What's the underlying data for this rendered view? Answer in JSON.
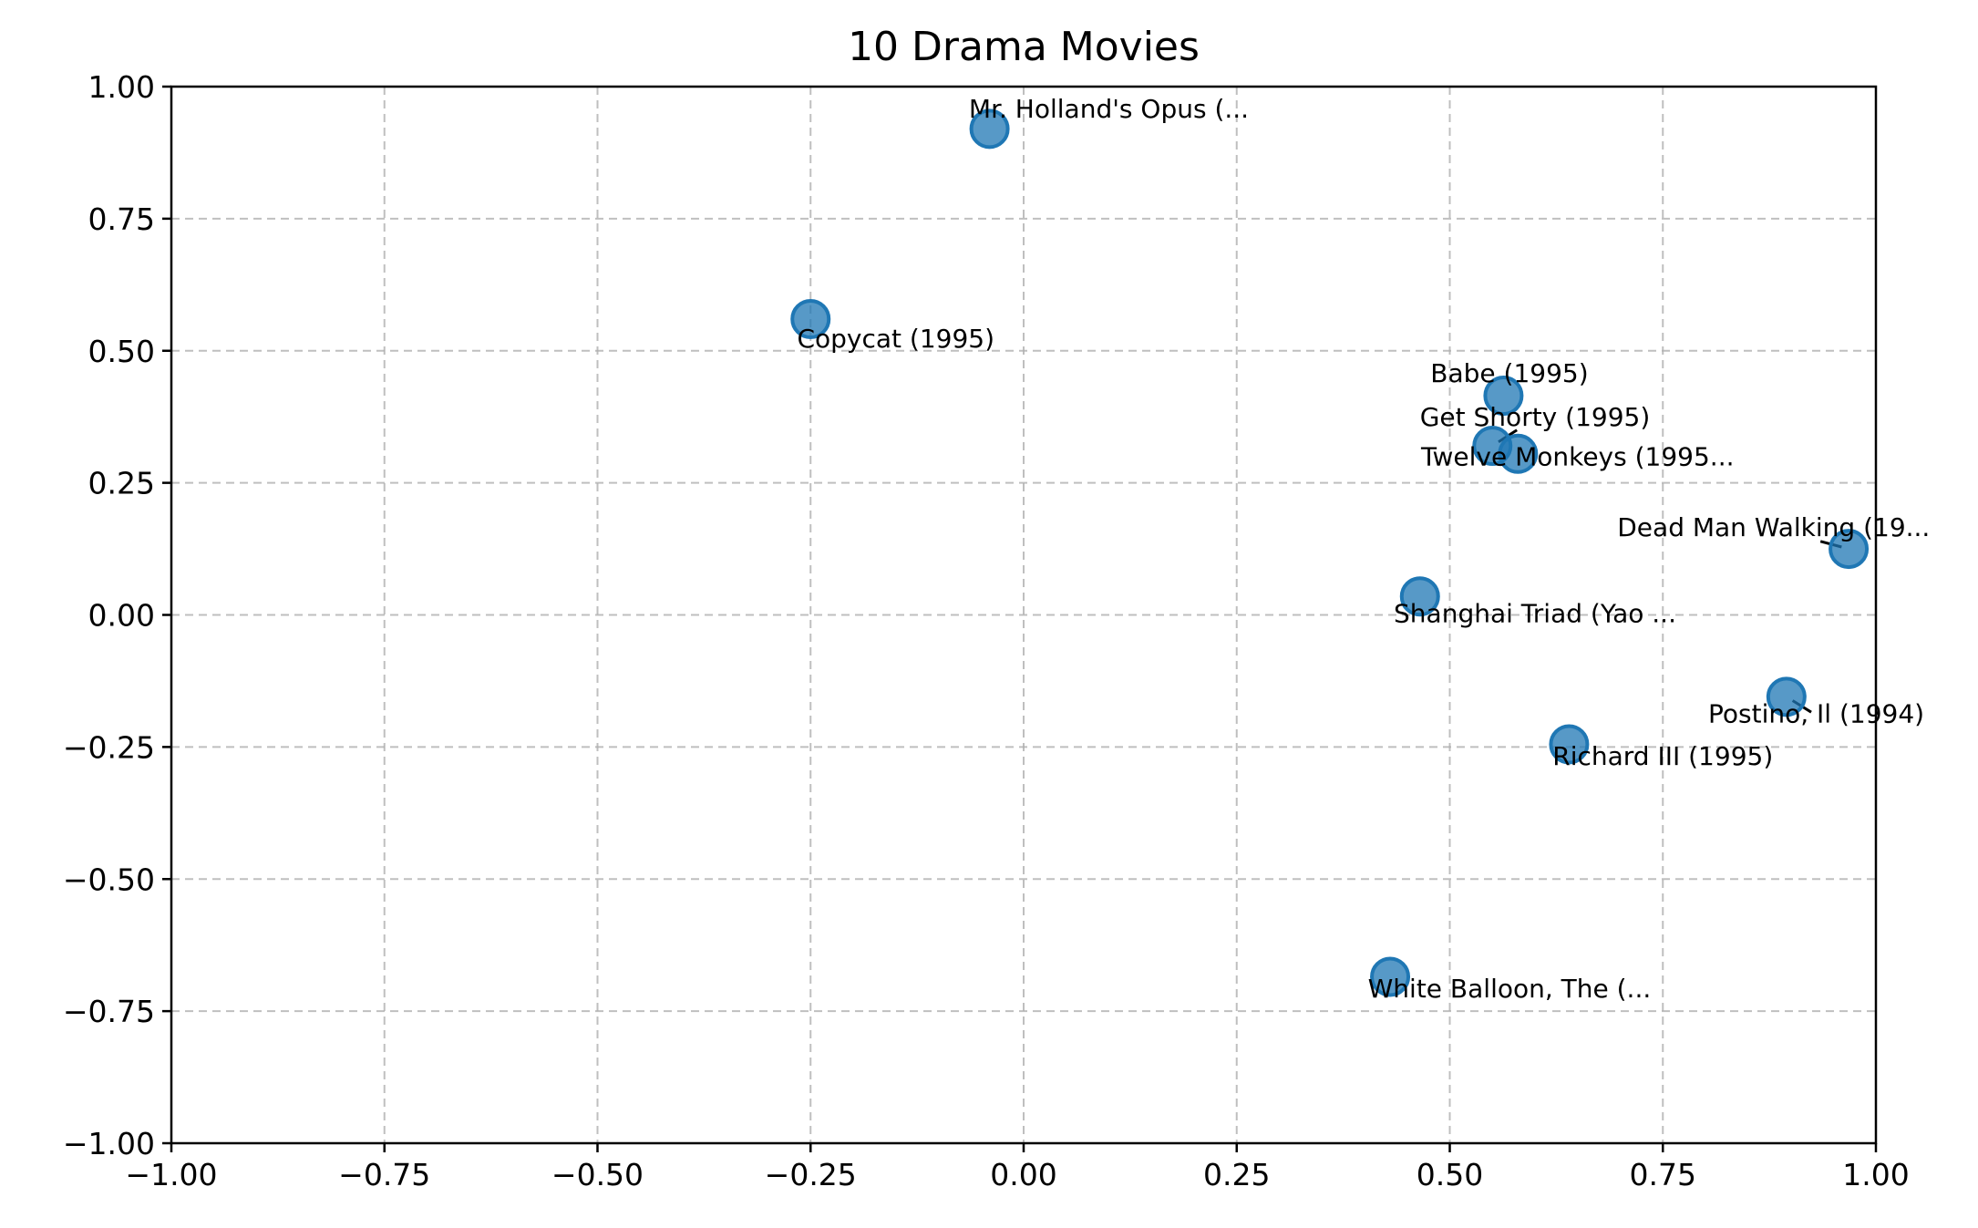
{
  "chart_data": {
    "type": "scatter",
    "title": "10 Drama Movies",
    "xlabel": "",
    "ylabel": "",
    "xlim": [
      -1.0,
      1.0
    ],
    "ylim": [
      -1.0,
      1.0
    ],
    "grid": true,
    "point_color": "#1f77b4",
    "x_ticks": [
      {
        "value": -1.0,
        "label": "−1.00"
      },
      {
        "value": -0.75,
        "label": "−0.75"
      },
      {
        "value": -0.5,
        "label": "−0.50"
      },
      {
        "value": -0.25,
        "label": "−0.25"
      },
      {
        "value": 0.0,
        "label": "0.00"
      },
      {
        "value": 0.25,
        "label": "0.25"
      },
      {
        "value": 0.5,
        "label": "0.50"
      },
      {
        "value": 0.75,
        "label": "0.75"
      },
      {
        "value": 1.0,
        "label": "1.00"
      }
    ],
    "y_ticks": [
      {
        "value": 1.0,
        "label": "1.00"
      },
      {
        "value": 0.75,
        "label": "0.75"
      },
      {
        "value": 0.5,
        "label": "0.50"
      },
      {
        "value": 0.25,
        "label": "0.25"
      },
      {
        "value": 0.0,
        "label": "0.00"
      },
      {
        "value": -0.25,
        "label": "−0.25"
      },
      {
        "value": -0.5,
        "label": "−0.50"
      },
      {
        "value": -0.75,
        "label": "−0.75"
      },
      {
        "value": -1.0,
        "label": "−1.00"
      }
    ],
    "points": [
      {
        "label": "Mr. Holland's Opus (...",
        "x": -0.04,
        "y": 0.92,
        "label_x": 0.1,
        "label_y": 0.955
      },
      {
        "label": "Copycat (1995)",
        "x": -0.25,
        "y": 0.56,
        "label_x": -0.15,
        "label_y": 0.52
      },
      {
        "label": "Babe (1995)",
        "x": 0.563,
        "y": 0.415,
        "label_x": 0.57,
        "label_y": 0.455
      },
      {
        "label": "Get Shorty (1995)",
        "x": 0.55,
        "y": 0.32,
        "label_x": 0.6,
        "label_y": 0.372,
        "leader": true
      },
      {
        "label": "Twelve Monkeys (1995...",
        "x": 0.58,
        "y": 0.305,
        "label_x": 0.65,
        "label_y": 0.297
      },
      {
        "label": "Dead Man Walking (19...",
        "x": 0.968,
        "y": 0.125,
        "label_x": 0.88,
        "label_y": 0.163,
        "leader": true
      },
      {
        "label": "Shanghai Triad (Yao ...",
        "x": 0.465,
        "y": 0.035,
        "label_x": 0.6,
        "label_y": 0.0
      },
      {
        "label": "Postino, Il (1994)",
        "x": 0.895,
        "y": -0.155,
        "label_x": 0.93,
        "label_y": -0.19,
        "leader": true
      },
      {
        "label": "Richard III (1995)",
        "x": 0.64,
        "y": -0.245,
        "label_x": 0.75,
        "label_y": -0.27
      },
      {
        "label": "White Balloon, The (...",
        "x": 0.43,
        "y": -0.685,
        "label_x": 0.57,
        "label_y": -0.71
      }
    ]
  }
}
